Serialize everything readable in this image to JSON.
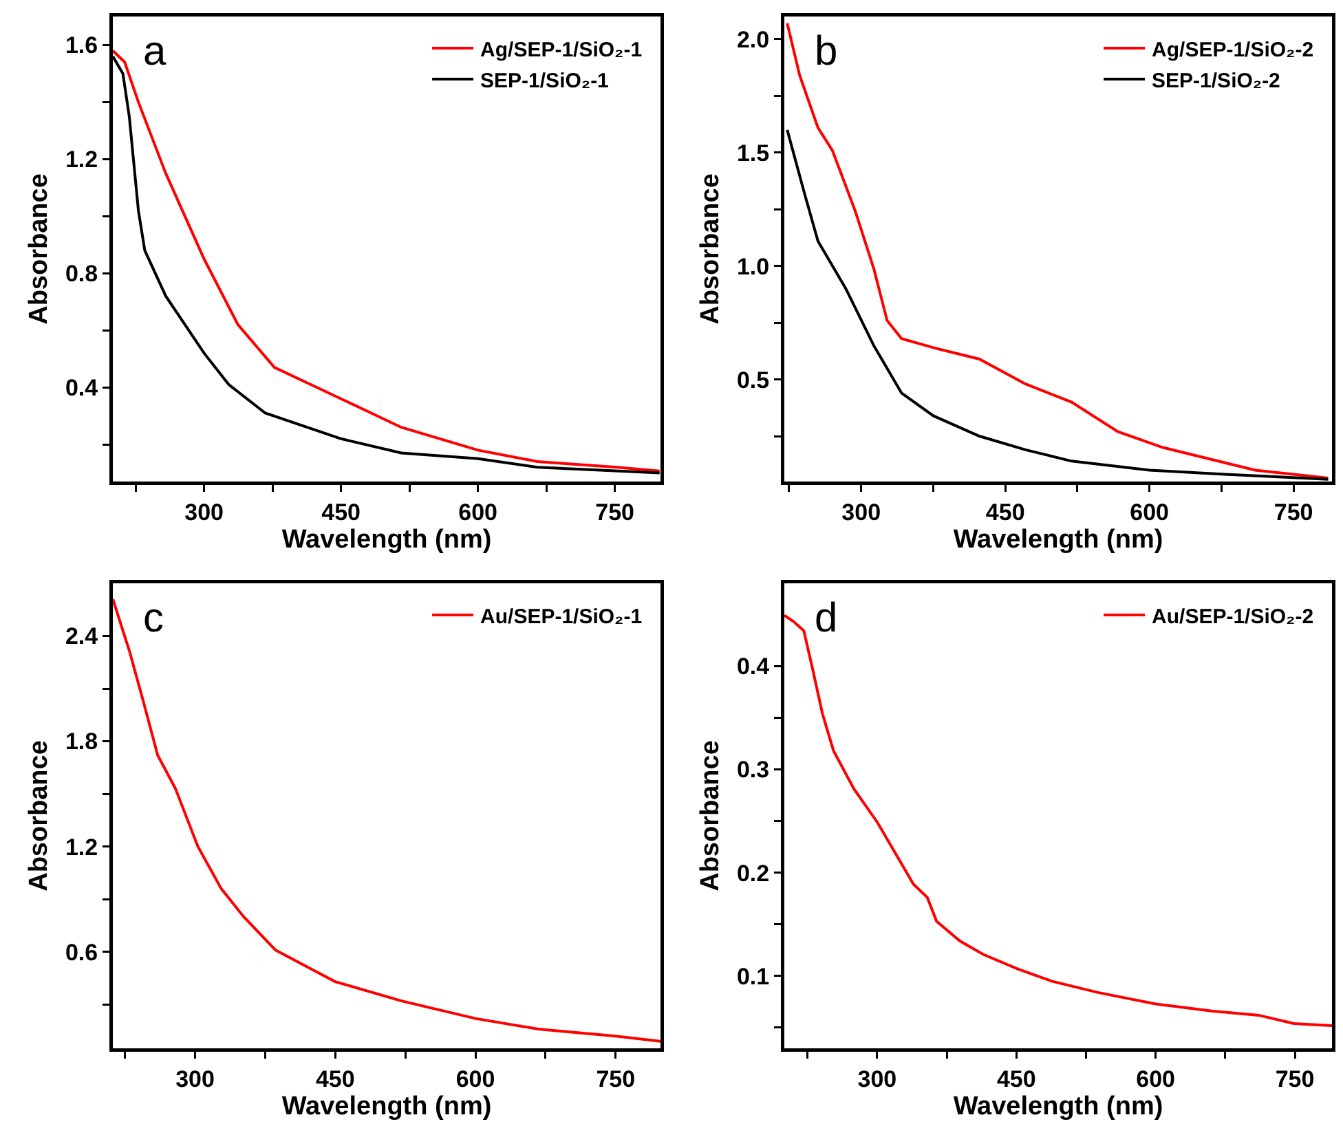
{
  "chart_data": [
    {
      "type": "line",
      "xlabel": "Wavelength (nm)",
      "ylabel": "Absorbance",
      "annotations": [
        "a"
      ],
      "legend": "top right",
      "grid": false,
      "line_style": "solid",
      "xlim": [
        200,
        800
      ],
      "ylim": [
        0.07,
        1.7
      ],
      "xticks": [
        {
          "value": 225,
          "label": null
        },
        300,
        {
          "value": 375,
          "label": null
        },
        450,
        {
          "value": 525,
          "label": null
        },
        600,
        {
          "value": 675,
          "label": null
        },
        750
      ],
      "yticks": [
        {
          "value": 0.2,
          "label": null
        },
        0.4,
        {
          "value": 0.6,
          "label": null
        },
        0.8,
        {
          "value": 1.0,
          "label": null
        },
        1.2,
        {
          "value": 1.4,
          "label": null
        },
        1.6
      ],
      "series": [
        {
          "name": "Ag/SEP-1/SiO₂-1",
          "color": "#ff0000",
          "x": [
            200,
            213,
            228,
            258,
            300,
            337,
            377,
            450,
            516,
            600,
            665,
            752,
            799
          ],
          "values": [
            1.58,
            1.54,
            1.4,
            1.15,
            0.85,
            0.62,
            0.47,
            0.36,
            0.26,
            0.18,
            0.14,
            0.12,
            0.107
          ]
        },
        {
          "name": "SEP-1/SiO₂-1",
          "color": "#000000",
          "x": [
            200,
            211,
            218,
            228,
            235,
            258,
            300,
            327,
            367,
            450,
            516,
            600,
            665,
            799
          ],
          "values": [
            1.56,
            1.5,
            1.35,
            1.02,
            0.88,
            0.72,
            0.52,
            0.41,
            0.31,
            0.22,
            0.17,
            0.15,
            0.12,
            0.1
          ]
        }
      ]
    },
    {
      "type": "line",
      "xlabel": "Wavelength (nm)",
      "ylabel": "Absorbance",
      "annotations": [
        "b"
      ],
      "legend": "top right",
      "grid": false,
      "line_style": "solid",
      "xlim": [
        220,
        790
      ],
      "ylim": [
        0.05,
        2.1
      ],
      "xticks": [
        {
          "value": 225,
          "label": null
        },
        300,
        {
          "value": 375,
          "label": null
        },
        450,
        {
          "value": 525,
          "label": null
        },
        600,
        {
          "value": 675,
          "label": null
        },
        750
      ],
      "yticks": [
        {
          "value": 0.25,
          "label": null
        },
        0.5,
        {
          "value": 0.75,
          "label": null
        },
        "1.0",
        {
          "value": 1.25,
          "label": null
        },
        1.5,
        {
          "value": 1.75,
          "label": null
        },
        "2.0"
      ],
      "series": [
        {
          "name": "Ag/SEP-1/SiO₂-2",
          "color": "#ff0000",
          "x": [
            223,
            236,
            255,
            270,
            294,
            313,
            327,
            342,
            375,
            423,
            471,
            519,
            567,
            614,
            662,
            710,
            786
          ],
          "values": [
            2.07,
            1.84,
            1.61,
            1.51,
            1.24,
            0.99,
            0.76,
            0.68,
            0.64,
            0.59,
            0.48,
            0.4,
            0.27,
            0.2,
            0.15,
            0.1,
            0.065
          ]
        },
        {
          "name": "SEP-1/SiO₂-2",
          "color": "#000000",
          "x": [
            223,
            241,
            255,
            284,
            313,
            342,
            375,
            423,
            471,
            519,
            600,
            686,
            786
          ],
          "values": [
            1.6,
            1.32,
            1.11,
            0.9,
            0.65,
            0.44,
            0.34,
            0.25,
            0.19,
            0.14,
            0.1,
            0.08,
            0.06
          ]
        }
      ]
    },
    {
      "type": "line",
      "xlabel": "Wavelength (nm)",
      "ylabel": "Absorbance",
      "annotations": [
        "c"
      ],
      "legend": "top right",
      "grid": false,
      "line_style": "solid",
      "xlim": [
        212,
        798
      ],
      "ylim": [
        0.05,
        2.7
      ],
      "xticks": [
        {
          "value": 225,
          "label": null
        },
        300,
        {
          "value": 375,
          "label": null
        },
        450,
        {
          "value": 525,
          "label": null
        },
        600,
        {
          "value": 675,
          "label": null
        },
        750
      ],
      "yticks": [
        {
          "value": 0.3,
          "label": null
        },
        0.6,
        {
          "value": 0.9,
          "label": null
        },
        1.2,
        {
          "value": 1.5,
          "label": null
        },
        1.8,
        {
          "value": 2.1,
          "label": null
        },
        2.4
      ],
      "series": [
        {
          "name": "Au/SEP-1/SiO₂-1",
          "color": "#ff0000",
          "x": [
            212,
            230,
            245,
            260,
            279,
            303,
            328,
            352,
            386,
            425,
            450,
            521,
            600,
            667,
            750,
            798
          ],
          "values": [
            2.61,
            2.31,
            2.02,
            1.72,
            1.53,
            1.2,
            0.96,
            0.8,
            0.61,
            0.5,
            0.43,
            0.32,
            0.22,
            0.16,
            0.12,
            0.09
          ]
        }
      ]
    },
    {
      "type": "line",
      "xlabel": "Wavelength (nm)",
      "ylabel": "Absorbance",
      "annotations": [
        "d"
      ],
      "legend": "top right",
      "grid": false,
      "line_style": "solid",
      "xlim": [
        200,
        790
      ],
      "ylim": [
        0.03,
        0.48
      ],
      "xticks": [
        {
          "value": 225,
          "label": null
        },
        300,
        {
          "value": 375,
          "label": null
        },
        450,
        {
          "value": 525,
          "label": null
        },
        600,
        {
          "value": 675,
          "label": null
        },
        750
      ],
      "yticks": [
        {
          "value": 0.05,
          "label": null
        },
        0.1,
        {
          "value": 0.15,
          "label": null
        },
        0.2,
        {
          "value": 0.25,
          "label": null
        },
        0.3,
        {
          "value": 0.35,
          "label": null
        },
        0.4
      ],
      "series": [
        {
          "name": "Au/SEP-1/SiO₂-2",
          "color": "#ff0000",
          "x": [
            200,
            210,
            221,
            231,
            241,
            253,
            275,
            300,
            324,
            339,
            354,
            364,
            389,
            414,
            451,
            488,
            538,
            600,
            662,
            711,
            749,
            790
          ],
          "values": [
            0.449,
            0.443,
            0.434,
            0.395,
            0.354,
            0.318,
            0.281,
            0.249,
            0.212,
            0.189,
            0.176,
            0.153,
            0.134,
            0.121,
            0.107,
            0.095,
            0.084,
            0.073,
            0.066,
            0.062,
            0.054,
            0.052
          ]
        }
      ]
    }
  ]
}
